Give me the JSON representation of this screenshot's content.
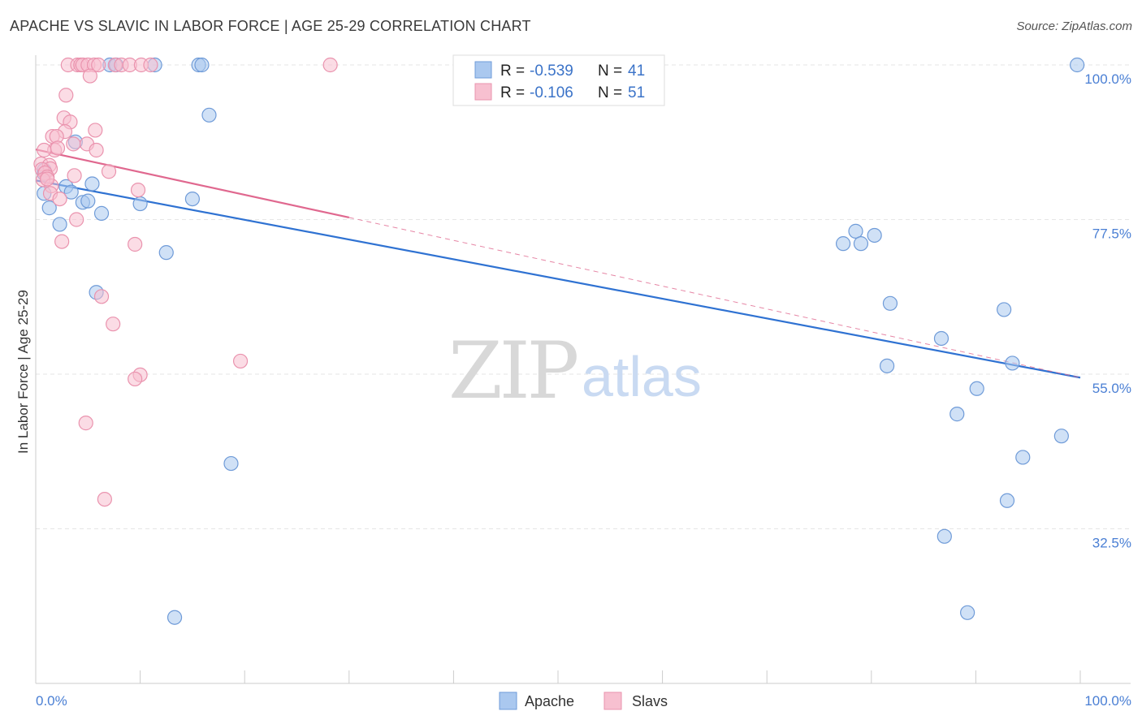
{
  "title": "APACHE VS SLAVIC IN LABOR FORCE | AGE 25-29 CORRELATION CHART",
  "source": "Source: ZipAtlas.com",
  "colors": {
    "apache_fill": "#aac8ef",
    "apache_stroke": "#6f9bd8",
    "apache_line": "#2f72d2",
    "slavs_fill": "#f7c0d0",
    "slavs_stroke": "#ea93ae",
    "slavs_line": "#e0688f",
    "tick_text": "#4a7fd4",
    "grid": "#e6e6e6"
  },
  "legend": {
    "r_label": "R =",
    "n_label": "N =",
    "apache_r": "-0.539",
    "apache_n": "41",
    "slavs_r": "-0.106",
    "slavs_n": "51"
  },
  "watermark": {
    "zip": "ZIP",
    "atlas": "atlas"
  },
  "chart_data": {
    "type": "scatter",
    "title": "APACHE VS SLAVIC IN LABOR FORCE | AGE 25-29 CORRELATION CHART",
    "xlabel": "",
    "ylabel": "In Labor Force | Age 25-29",
    "xlim": [
      0,
      100
    ],
    "ylim": [
      10,
      102
    ],
    "x_tick_labels": [
      "0.0%",
      "100.0%"
    ],
    "y_ticks": [
      32.5,
      55.0,
      77.5,
      100.0
    ],
    "y_tick_labels": [
      "32.5%",
      "55.0%",
      "77.5%",
      "100.0%"
    ],
    "grid": true,
    "legend_placement": "top-center",
    "series": [
      {
        "name": "Apache",
        "r": -0.539,
        "n": 41,
        "trend": {
          "x": [
            0,
            100
          ],
          "y": [
            83.2,
            54.5
          ]
        },
        "points": [
          {
            "x": 7.1,
            "y": 100
          },
          {
            "x": 7.7,
            "y": 100
          },
          {
            "x": 11.4,
            "y": 100
          },
          {
            "x": 15.6,
            "y": 100
          },
          {
            "x": 15.9,
            "y": 100
          },
          {
            "x": 99.7,
            "y": 100
          },
          {
            "x": 16.6,
            "y": 92.7
          },
          {
            "x": 3.8,
            "y": 88.8
          },
          {
            "x": 0.8,
            "y": 84.7
          },
          {
            "x": 5.4,
            "y": 82.7
          },
          {
            "x": 2.9,
            "y": 82.3
          },
          {
            "x": 0.8,
            "y": 81.3
          },
          {
            "x": 3.4,
            "y": 81.5
          },
          {
            "x": 1.3,
            "y": 79.2
          },
          {
            "x": 4.5,
            "y": 80.0
          },
          {
            "x": 5.0,
            "y": 80.2
          },
          {
            "x": 6.3,
            "y": 78.4
          },
          {
            "x": 10.0,
            "y": 79.8
          },
          {
            "x": 15.0,
            "y": 80.5
          },
          {
            "x": 2.3,
            "y": 76.8
          },
          {
            "x": 12.5,
            "y": 72.7
          },
          {
            "x": 5.8,
            "y": 66.9
          },
          {
            "x": 78.5,
            "y": 75.8
          },
          {
            "x": 77.3,
            "y": 74.0
          },
          {
            "x": 79.0,
            "y": 74.0
          },
          {
            "x": 80.3,
            "y": 75.2
          },
          {
            "x": 81.8,
            "y": 65.3
          },
          {
            "x": 92.7,
            "y": 64.4
          },
          {
            "x": 86.7,
            "y": 60.2
          },
          {
            "x": 81.5,
            "y": 56.2
          },
          {
            "x": 93.5,
            "y": 56.6
          },
          {
            "x": 90.1,
            "y": 52.9
          },
          {
            "x": 88.2,
            "y": 49.2
          },
          {
            "x": 98.2,
            "y": 46.0
          },
          {
            "x": 94.5,
            "y": 42.9
          },
          {
            "x": 18.7,
            "y": 42.0
          },
          {
            "x": 93.0,
            "y": 36.6
          },
          {
            "x": 87.0,
            "y": 31.4
          },
          {
            "x": 89.2,
            "y": 20.3
          },
          {
            "x": 13.3,
            "y": 19.6
          },
          {
            "x": 0.8,
            "y": 84.2
          }
        ]
      },
      {
        "name": "Slavs",
        "r": -0.106,
        "n": 51,
        "trend": {
          "x": [
            0,
            30
          ],
          "y": [
            87.7,
            77.8
          ],
          "dashed_to": [
            100,
            54.5
          ]
        },
        "points": [
          {
            "x": 3.1,
            "y": 100
          },
          {
            "x": 4.0,
            "y": 100
          },
          {
            "x": 4.3,
            "y": 100
          },
          {
            "x": 4.5,
            "y": 100
          },
          {
            "x": 5.0,
            "y": 100
          },
          {
            "x": 5.6,
            "y": 100
          },
          {
            "x": 6.0,
            "y": 100
          },
          {
            "x": 7.6,
            "y": 100
          },
          {
            "x": 8.2,
            "y": 100
          },
          {
            "x": 9.0,
            "y": 100
          },
          {
            "x": 10.1,
            "y": 100
          },
          {
            "x": 11.0,
            "y": 100
          },
          {
            "x": 28.2,
            "y": 100
          },
          {
            "x": 5.2,
            "y": 98.4
          },
          {
            "x": 2.9,
            "y": 95.6
          },
          {
            "x": 2.7,
            "y": 92.3
          },
          {
            "x": 3.3,
            "y": 91.7
          },
          {
            "x": 2.8,
            "y": 90.3
          },
          {
            "x": 5.7,
            "y": 90.5
          },
          {
            "x": 1.6,
            "y": 89.6
          },
          {
            "x": 2.0,
            "y": 89.6
          },
          {
            "x": 3.6,
            "y": 88.5
          },
          {
            "x": 4.9,
            "y": 88.5
          },
          {
            "x": 1.8,
            "y": 87.6
          },
          {
            "x": 2.1,
            "y": 87.9
          },
          {
            "x": 5.8,
            "y": 87.6
          },
          {
            "x": 0.8,
            "y": 87.6
          },
          {
            "x": 0.5,
            "y": 85.6
          },
          {
            "x": 1.3,
            "y": 85.4
          },
          {
            "x": 1.4,
            "y": 84.9
          },
          {
            "x": 0.6,
            "y": 84.8
          },
          {
            "x": 7.0,
            "y": 84.5
          },
          {
            "x": 0.9,
            "y": 84.3
          },
          {
            "x": 1.1,
            "y": 83.7
          },
          {
            "x": 3.7,
            "y": 83.9
          },
          {
            "x": 0.7,
            "y": 83.3
          },
          {
            "x": 1.5,
            "y": 82.4
          },
          {
            "x": 1.4,
            "y": 81.3
          },
          {
            "x": 9.8,
            "y": 81.8
          },
          {
            "x": 2.3,
            "y": 80.5
          },
          {
            "x": 3.9,
            "y": 77.5
          },
          {
            "x": 2.5,
            "y": 74.3
          },
          {
            "x": 9.5,
            "y": 73.9
          },
          {
            "x": 6.3,
            "y": 66.3
          },
          {
            "x": 7.4,
            "y": 62.3
          },
          {
            "x": 19.6,
            "y": 56.9
          },
          {
            "x": 10.0,
            "y": 54.9
          },
          {
            "x": 9.5,
            "y": 54.3
          },
          {
            "x": 4.8,
            "y": 47.9
          },
          {
            "x": 6.6,
            "y": 36.8
          },
          {
            "x": 1.1,
            "y": 83.4
          }
        ]
      }
    ]
  },
  "bottom_legend": {
    "apache": "Apache",
    "slavs": "Slavs"
  }
}
